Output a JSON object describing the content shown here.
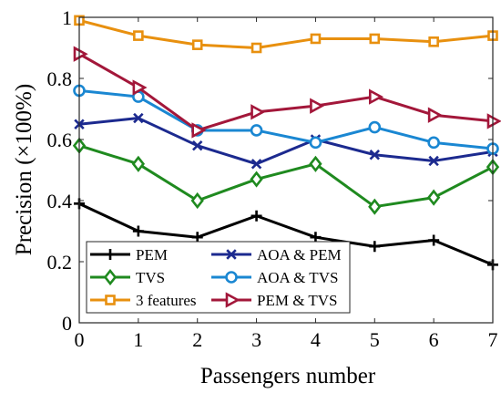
{
  "chart_data": {
    "type": "line",
    "xlabel": "Passengers number",
    "ylabel": "Precision (×100%)",
    "x": [
      0,
      1,
      2,
      3,
      4,
      5,
      6,
      7
    ],
    "xlim": [
      0,
      7
    ],
    "ylim": [
      0,
      1
    ],
    "xticks": [
      "0",
      "1",
      "2",
      "3",
      "4",
      "5",
      "6",
      "7"
    ],
    "yticks": [
      "0",
      "0.2",
      "0.4",
      "0.6",
      "0.8",
      "1"
    ],
    "grid": false,
    "legend_position": "bottom-left",
    "series": [
      {
        "name": "PEM",
        "color": "#000000",
        "marker": "plus",
        "values": [
          0.39,
          0.3,
          0.28,
          0.35,
          0.28,
          0.25,
          0.27,
          0.19
        ]
      },
      {
        "name": "TVS",
        "color": "#1f8a1f",
        "marker": "diamond",
        "values": [
          0.58,
          0.52,
          0.4,
          0.47,
          0.52,
          0.38,
          0.41,
          0.51
        ]
      },
      {
        "name": "3 features",
        "color": "#e8900f",
        "marker": "square",
        "values": [
          0.99,
          0.94,
          0.91,
          0.9,
          0.93,
          0.93,
          0.92,
          0.94
        ]
      },
      {
        "name": "AOA & PEM",
        "color": "#1c2a8f",
        "marker": "x",
        "values": [
          0.65,
          0.67,
          0.58,
          0.52,
          0.6,
          0.55,
          0.53,
          0.56
        ]
      },
      {
        "name": "AOA & TVS",
        "color": "#1a87d2",
        "marker": "circle",
        "values": [
          0.76,
          0.74,
          0.63,
          0.63,
          0.59,
          0.64,
          0.59,
          0.57
        ]
      },
      {
        "name": "PEM & TVS",
        "color": "#a3173a",
        "marker": "triangle-right",
        "values": [
          0.88,
          0.77,
          0.63,
          0.69,
          0.71,
          0.74,
          0.68,
          0.66
        ]
      }
    ]
  }
}
